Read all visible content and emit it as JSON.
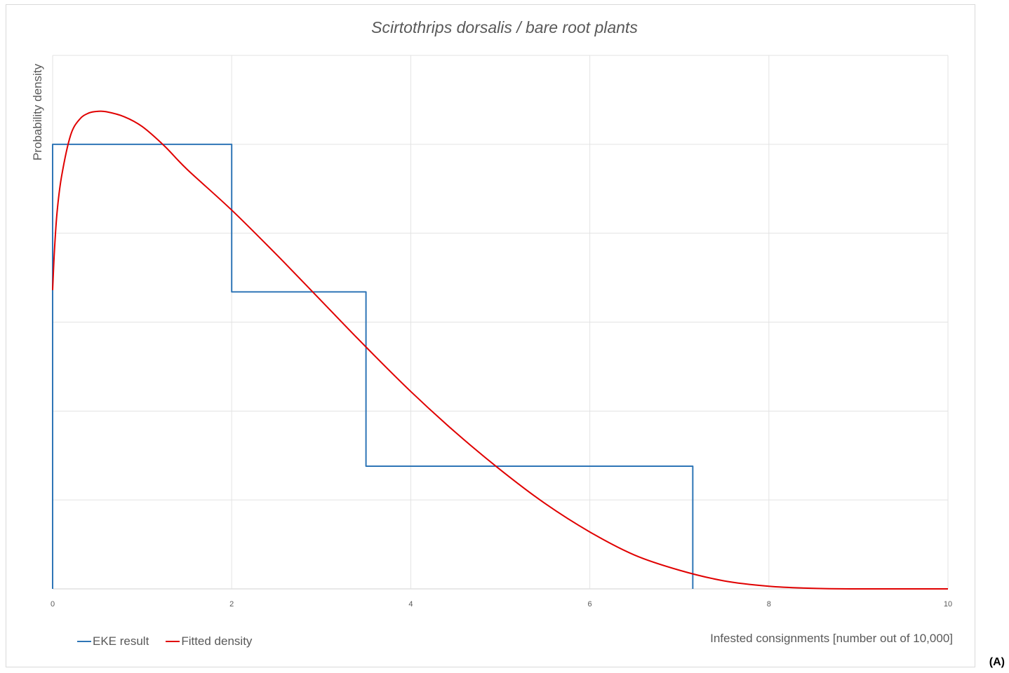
{
  "panel_label": "(A)",
  "chart_data": {
    "type": "line",
    "title": "Scirtothrips dorsalis / bare root plants",
    "xlabel": "Infested consignments [number out of 10,000]",
    "ylabel": "Probability density",
    "xlim": [
      0,
      10
    ],
    "ylim": [
      0,
      0.3
    ],
    "x_ticks": [
      "0",
      "2",
      "4",
      "6",
      "8",
      "10"
    ],
    "y_ticks_shown": false,
    "grid": true,
    "legend_position": "bottom-left",
    "series": [
      {
        "name": "EKE result",
        "color": "#2e75b6",
        "style": "step",
        "x": [
          0,
          0,
          2,
          2,
          3.5,
          3.5,
          7.15,
          7.15
        ],
        "y": [
          0,
          0.25,
          0.25,
          0.167,
          0.167,
          0.069,
          0.069,
          0
        ]
      },
      {
        "name": "Fitted density",
        "color": "#e00000",
        "style": "smooth",
        "x": [
          0,
          0.02,
          0.05,
          0.1,
          0.2,
          0.3,
          0.4,
          0.5,
          0.6,
          0.8,
          1.0,
          1.25,
          1.5,
          2.0,
          2.5,
          3.0,
          3.5,
          4.0,
          4.5,
          5.0,
          5.5,
          6.0,
          6.5,
          7.0,
          7.5,
          8.0,
          8.5,
          9.0,
          9.5,
          10.0
        ],
        "y": [
          0.168,
          0.19,
          0.212,
          0.232,
          0.255,
          0.264,
          0.2675,
          0.2685,
          0.2683,
          0.2655,
          0.26,
          0.249,
          0.236,
          0.213,
          0.188,
          0.162,
          0.136,
          0.111,
          0.088,
          0.067,
          0.048,
          0.032,
          0.019,
          0.0105,
          0.0045,
          0.0015,
          0.0003,
          0.0,
          0.0,
          0.0
        ]
      }
    ]
  }
}
